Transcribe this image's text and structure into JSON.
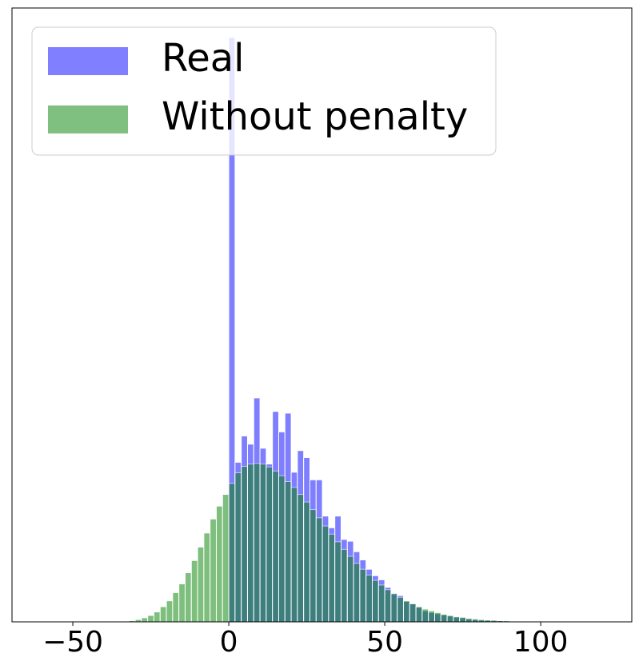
{
  "chart_data": {
    "type": "histogram",
    "bins": [
      -34,
      -32,
      -30,
      -28,
      -26,
      -24,
      -22,
      -20,
      -18,
      -16,
      -14,
      -12,
      -10,
      -8,
      -6,
      -4,
      -2,
      0,
      2,
      4,
      6,
      8,
      10,
      12,
      14,
      16,
      18,
      20,
      22,
      24,
      26,
      28,
      30,
      32,
      34,
      36,
      38,
      40,
      42,
      44,
      46,
      48,
      50,
      52,
      54,
      56,
      58,
      60,
      62,
      64,
      66,
      68,
      70,
      72,
      74,
      76,
      78,
      80,
      82,
      84,
      86,
      88,
      90,
      92,
      94,
      96,
      98,
      100,
      102,
      104,
      106
    ],
    "series": [
      {
        "name": "Real",
        "color": "#0000ff",
        "values": [
          0,
          0,
          0,
          0,
          0,
          0,
          0,
          0,
          0,
          0,
          0,
          0,
          0,
          0,
          0,
          0,
          0,
          100,
          27.3,
          31.8,
          30.4,
          38.3,
          29.7,
          27.0,
          36.0,
          32.5,
          35.7,
          25.6,
          29.3,
          28.1,
          24.3,
          24.3,
          18.1,
          16.1,
          18.1,
          14.1,
          13.8,
          12.0,
          10.6,
          9.0,
          7.9,
          7.2,
          5.9,
          4.9,
          4.5,
          3.5,
          3.1,
          2.5,
          1.9,
          1.6,
          1.4,
          1.2,
          1.0,
          0.8,
          0.7,
          0.5,
          0.4,
          0.3,
          0.3,
          0.2,
          0.2,
          0.1,
          0.1,
          0.1,
          0.1,
          0.1,
          0.1,
          0,
          0,
          0
        ]
      },
      {
        "name": "Without penalty",
        "color": "#008000",
        "values": [
          0.1,
          0.2,
          0.4,
          0.7,
          1.1,
          1.7,
          2.6,
          3.6,
          5.0,
          6.5,
          8.4,
          10.5,
          12.8,
          15.2,
          17.6,
          19.8,
          21.8,
          23.7,
          25.5,
          26.6,
          27.0,
          27.1,
          27.0,
          26.5,
          25.8,
          25.0,
          24.0,
          23.0,
          21.8,
          20.5,
          19.2,
          17.8,
          16.4,
          15.0,
          13.7,
          12.4,
          11.2,
          10.0,
          9.0,
          8.0,
          7.1,
          6.3,
          5.5,
          4.8,
          4.2,
          3.6,
          3.1,
          2.6,
          2.2,
          1.9,
          1.6,
          1.3,
          1.1,
          0.9,
          0.8,
          0.6,
          0.5,
          0.4,
          0.3,
          0.3,
          0.2,
          0.2,
          0.1,
          0.1,
          0.1,
          0.1,
          0.1,
          0,
          0,
          0
        ]
      }
    ],
    "opacity": 0.5,
    "xlim": [
      -69.5,
      129.2
    ],
    "ylim": [
      0,
      105
    ],
    "xticks": [
      {
        "value": -50,
        "label": "−50"
      },
      0,
      50,
      100
    ],
    "legend": "upper left"
  }
}
